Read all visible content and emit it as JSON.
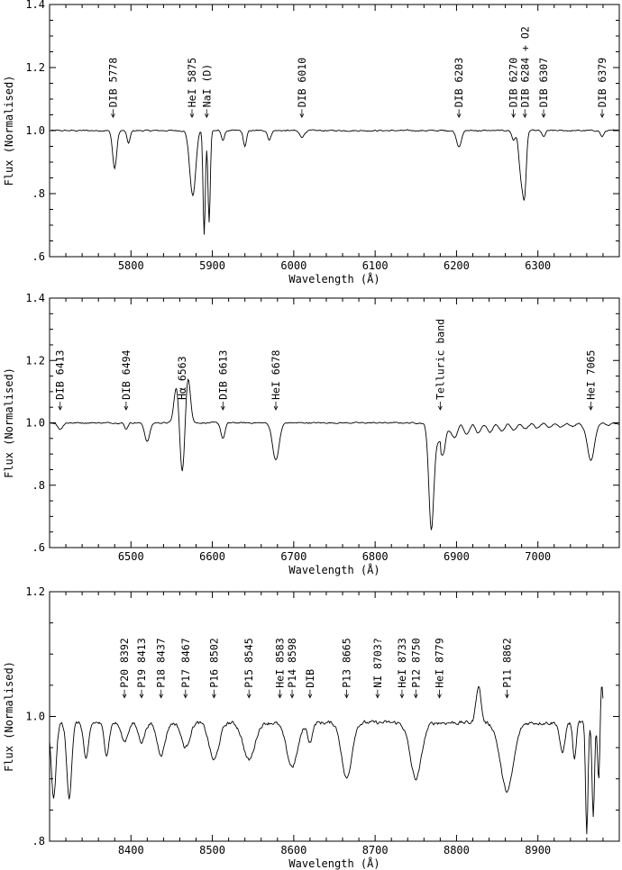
{
  "chart_data": [
    {
      "type": "line",
      "xlabel": "Wavelength (Å)",
      "ylabel": "Flux (Normalised)",
      "xlim": [
        5700,
        6400
      ],
      "ylim": [
        0.6,
        1.4
      ],
      "x_ticks": [
        5800,
        5900,
        6000,
        6100,
        6200,
        6300
      ],
      "y_ticks": [
        0.6,
        0.8,
        1.0,
        1.2,
        1.4
      ],
      "y_tick_labels": [
        ".6",
        ".8",
        "1.0",
        "1.2",
        "1.4"
      ],
      "baseline": 1.0,
      "noise": 0.004,
      "features": [
        {
          "c": 5780,
          "d": 0.12,
          "w": 2.5
        },
        {
          "c": 5797,
          "d": 0.04,
          "w": 2
        },
        {
          "c": 5876,
          "d": 0.21,
          "w": 4
        },
        {
          "c": 5890,
          "d": 0.33,
          "w": 1.4
        },
        {
          "c": 5896,
          "d": 0.29,
          "w": 1.4
        },
        {
          "c": 5913,
          "d": 0.03,
          "w": 2
        },
        {
          "c": 5940,
          "d": 0.05,
          "w": 2
        },
        {
          "c": 5970,
          "d": 0.03,
          "w": 2
        },
        {
          "c": 6010,
          "d": 0.02,
          "w": 3
        },
        {
          "c": 6203,
          "d": 0.05,
          "w": 3
        },
        {
          "c": 6270,
          "d": 0.03,
          "w": 2
        },
        {
          "c": 6280,
          "d": 0.16,
          "w": 3
        },
        {
          "c": 6284,
          "d": 0.14,
          "w": 2
        },
        {
          "c": 6307,
          "d": 0.02,
          "w": 2
        },
        {
          "c": 6379,
          "d": 0.02,
          "w": 2
        }
      ],
      "emissions": [
        {
          "c": 5870,
          "h": 0.01,
          "w": 3
        },
        {
          "c": 5882,
          "h": 0.02,
          "w": 3
        }
      ],
      "annotations": [
        {
          "x": 5778,
          "text": "DIB 5778"
        },
        {
          "x": 5875,
          "text": "HeI 5875"
        },
        {
          "x": 5893,
          "text": "NaI (D)"
        },
        {
          "x": 6010,
          "text": "DIB 6010"
        },
        {
          "x": 6203,
          "text": "DIB 6203"
        },
        {
          "x": 6270,
          "text": "DIB 6270"
        },
        {
          "x": 6284,
          "text": "DIB 6284 + O2"
        },
        {
          "x": 6307,
          "text": "DIB 6307"
        },
        {
          "x": 6379,
          "text": "DIB 6379"
        }
      ]
    },
    {
      "type": "line",
      "xlabel": "Wavelength (Å)",
      "ylabel": "Flux (Normalised)",
      "xlim": [
        6400,
        7100
      ],
      "ylim": [
        0.6,
        1.4
      ],
      "x_ticks": [
        6500,
        6600,
        6700,
        6800,
        6900,
        7000
      ],
      "y_ticks": [
        0.6,
        0.8,
        1.0,
        1.2,
        1.4
      ],
      "y_tick_labels": [
        ".6",
        ".8",
        "1.0",
        "1.2",
        "1.4"
      ],
      "baseline": 1.0,
      "noise": 0.004,
      "features": [
        {
          "c": 6413,
          "d": 0.02,
          "w": 3
        },
        {
          "c": 6494,
          "d": 0.02,
          "w": 2
        },
        {
          "c": 6520,
          "d": 0.06,
          "w": 3
        },
        {
          "c": 6563,
          "d": 0.17,
          "w": 3
        },
        {
          "c": 6613,
          "d": 0.05,
          "w": 2.5
        },
        {
          "c": 6678,
          "d": 0.12,
          "w": 4
        },
        {
          "c": 6869,
          "d": 0.32,
          "w": 3
        },
        {
          "c": 6880,
          "d": 0.06,
          "w": 8
        },
        {
          "c": 7065,
          "d": 0.12,
          "w": 4
        }
      ],
      "emissions": [
        {
          "c": 6556,
          "h": 0.12,
          "w": 3
        },
        {
          "c": 6570,
          "h": 0.15,
          "w": 3
        },
        {
          "c": 6888,
          "h": 0.02,
          "w": 2
        }
      ],
      "annotations": [
        {
          "x": 6413,
          "text": "DIB 6413"
        },
        {
          "x": 6494,
          "text": "DIB 6494"
        },
        {
          "x": 6563,
          "text": "Hα 6563",
          "plain": true
        },
        {
          "x": 6613,
          "text": "DIB 6613"
        },
        {
          "x": 6678,
          "text": "HeI 6678"
        },
        {
          "x": 6880,
          "text": "Telluric band"
        },
        {
          "x": 7065,
          "text": "HeI 7065"
        }
      ]
    },
    {
      "type": "line",
      "xlabel": "Wavelength (Å)",
      "ylabel": "Flux (Normalised)",
      "xlim": [
        8300,
        9000
      ],
      "ylim": [
        0.8,
        1.2
      ],
      "x_ticks": [
        8400,
        8500,
        8600,
        8700,
        8800,
        8900
      ],
      "y_ticks": [
        0.8,
        1.0,
        1.2
      ],
      "y_tick_labels": [
        ".8",
        "1.0",
        "1.2"
      ],
      "baseline": 0.99,
      "noise": 0.006,
      "xend": 8980,
      "features": [
        {
          "c": 8305,
          "d": 0.12,
          "w": 3
        },
        {
          "c": 8324,
          "d": 0.12,
          "w": 3
        },
        {
          "c": 8345,
          "d": 0.06,
          "w": 3
        },
        {
          "c": 8370,
          "d": 0.05,
          "w": 3
        },
        {
          "c": 8392,
          "d": 0.03,
          "w": 4
        },
        {
          "c": 8413,
          "d": 0.03,
          "w": 4
        },
        {
          "c": 8437,
          "d": 0.05,
          "w": 5
        },
        {
          "c": 8467,
          "d": 0.04,
          "w": 5
        },
        {
          "c": 8502,
          "d": 0.06,
          "w": 6
        },
        {
          "c": 8545,
          "d": 0.06,
          "w": 7
        },
        {
          "c": 8598,
          "d": 0.07,
          "w": 7
        },
        {
          "c": 8620,
          "d": 0.03,
          "w": 3
        },
        {
          "c": 8665,
          "d": 0.09,
          "w": 6
        },
        {
          "c": 8750,
          "d": 0.09,
          "w": 7
        },
        {
          "c": 8862,
          "d": 0.11,
          "w": 8
        },
        {
          "c": 8930,
          "d": 0.05,
          "w": 3
        },
        {
          "c": 8945,
          "d": 0.06,
          "w": 2
        },
        {
          "c": 8960,
          "d": 0.18,
          "w": 1.5
        },
        {
          "c": 8968,
          "d": 0.15,
          "w": 1.5
        },
        {
          "c": 8975,
          "d": 0.11,
          "w": 1.5
        }
      ],
      "emissions": [
        {
          "c": 8827,
          "h": 0.06,
          "w": 3
        },
        {
          "c": 8978,
          "h": 0.07,
          "w": 2
        }
      ],
      "annotations": [
        {
          "x": 8392,
          "text": "P20 8392"
        },
        {
          "x": 8413,
          "text": "P19 8413"
        },
        {
          "x": 8437,
          "text": "P18 8437"
        },
        {
          "x": 8467,
          "text": "P17 8467"
        },
        {
          "x": 8502,
          "text": "P16 8502"
        },
        {
          "x": 8545,
          "text": "P15 8545"
        },
        {
          "x": 8583,
          "text": "HeI 8583"
        },
        {
          "x": 8598,
          "text": "P14 8598"
        },
        {
          "x": 8620,
          "text": "DIB"
        },
        {
          "x": 8665,
          "text": "P13 8665"
        },
        {
          "x": 8703,
          "text": "NI 8703?"
        },
        {
          "x": 8733,
          "text": "HeI 8733"
        },
        {
          "x": 8750,
          "text": "P12 8750"
        },
        {
          "x": 8779,
          "text": "HeI 8779"
        },
        {
          "x": 8862,
          "text": "P11 8862"
        }
      ]
    }
  ]
}
